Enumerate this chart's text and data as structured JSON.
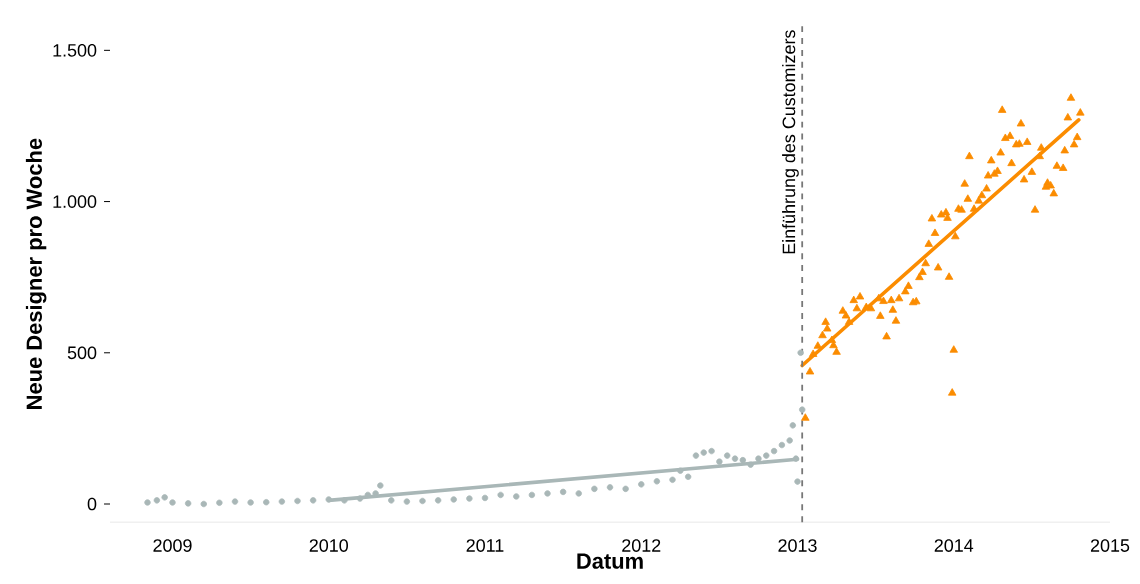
{
  "chart_data": {
    "type": "scatter",
    "xlabel": "Datum",
    "ylabel": "Neue Designer pro Woche",
    "xlim": [
      2008.6,
      2015
    ],
    "ylim": [
      -60,
      1580
    ],
    "xticks": [
      2009,
      2010,
      2011,
      2012,
      2013,
      2014,
      2015
    ],
    "yticks": [
      {
        "value": 0,
        "label": "0"
      },
      {
        "value": 500,
        "label": "500"
      },
      {
        "value": 1000,
        "label": "1.000"
      },
      {
        "value": 1500,
        "label": "1.500"
      }
    ],
    "ref_lines": [
      {
        "axis": "x",
        "value": 2013.03,
        "label": "Einführung des Customizers",
        "color": "#777777",
        "line_style": "dashed"
      }
    ],
    "series": [
      {
        "marker": "circle",
        "color": "#a9b7b7",
        "x": [
          2008.84,
          2008.9,
          2008.95,
          2009.0,
          2009.1,
          2009.2,
          2009.3,
          2009.4,
          2009.5,
          2009.6,
          2009.7,
          2009.8,
          2009.9,
          2010.0,
          2010.1,
          2010.2,
          2010.25,
          2010.3,
          2010.33,
          2010.4,
          2010.5,
          2010.6,
          2010.7,
          2010.8,
          2010.9,
          2011.0,
          2011.1,
          2011.2,
          2011.3,
          2011.4,
          2011.5,
          2011.6,
          2011.7,
          2011.8,
          2011.9,
          2012.0,
          2012.1,
          2012.2,
          2012.25,
          2012.3,
          2012.35,
          2012.4,
          2012.45,
          2012.5,
          2012.55,
          2012.6,
          2012.65,
          2012.7,
          2012.75,
          2012.8,
          2012.85,
          2012.9,
          2012.95,
          2012.97,
          2012.99,
          2013.0,
          2013.02,
          2013.03
        ],
        "values": [
          5,
          12,
          22,
          5,
          2,
          0,
          4,
          8,
          5,
          6,
          8,
          10,
          12,
          15,
          12,
          18,
          30,
          35,
          61,
          12,
          8,
          10,
          12,
          15,
          18,
          20,
          30,
          25,
          30,
          35,
          40,
          35,
          50,
          55,
          50,
          65,
          75,
          80,
          110,
          90,
          160,
          170,
          175,
          140,
          160,
          150,
          145,
          130,
          150,
          160,
          175,
          195,
          210,
          260,
          150,
          74,
          500,
          312
        ]
      },
      {
        "type": "line",
        "marker": "none",
        "color": "#a9b7b7",
        "x": [
          2010.0,
          2013.0
        ],
        "values": [
          12,
          148
        ]
      },
      {
        "marker": "triangle",
        "color": "#fb8c00",
        "x": [
          2013.05,
          2013.08,
          2013.1,
          2013.13,
          2013.16,
          2013.18,
          2013.19,
          2013.22,
          2013.23,
          2013.25,
          2013.29,
          2013.31,
          2013.33,
          2013.36,
          2013.38,
          2013.4,
          2013.44,
          2013.47,
          2013.52,
          2013.53,
          2013.55,
          2013.57,
          2013.6,
          2013.61,
          2013.63,
          2013.65,
          2013.69,
          2013.71,
          2013.74,
          2013.76,
          2013.78,
          2013.8,
          2013.82,
          2013.84,
          2013.86,
          2013.88,
          2013.9,
          2013.92,
          2013.95,
          2013.96,
          2013.97,
          2013.99,
          2014.0,
          2014.01,
          2014.03,
          2014.05,
          2014.07,
          2014.09,
          2014.1,
          2014.13,
          2014.16,
          2014.18,
          2014.21,
          2014.22,
          2014.24,
          2014.26,
          2014.28,
          2014.3,
          2014.31,
          2014.33,
          2014.36,
          2014.37,
          2014.4,
          2014.42,
          2014.43,
          2014.45,
          2014.47,
          2014.5,
          2014.52,
          2014.55,
          2014.56,
          2014.59,
          2014.6,
          2014.62,
          2014.64,
          2014.66,
          2014.7,
          2014.71,
          2014.73,
          2014.75,
          2014.77,
          2014.79,
          2014.81
        ],
        "values": [
          284,
          437,
          495,
          522,
          557,
          601,
          579,
          541,
          524,
          502,
          638,
          622,
          601,
          673,
          646,
          685,
          650,
          646,
          679,
          621,
          670,
          553,
          673,
          641,
          605,
          679,
          702,
          720,
          666,
          669,
          749,
          766,
          795,
          859,
          943,
          895,
          781,
          956,
          963,
          945,
          750,
          367,
          509,
          884,
          975,
          972,
          1058,
          1008,
          1149,
          975,
          1002,
          1020,
          1042,
          1085,
          1135,
          1091,
          1100,
          1161,
          1302,
          1209,
          1216,
          1126,
          1188,
          1190,
          1257,
          1072,
          1196,
          1097,
          972,
          1149,
          1177,
          1048,
          1061,
          1052,
          1026,
          1117,
          1110,
          1168,
          1277,
          1342,
          1188,
          1212,
          1293
        ]
      },
      {
        "type": "line",
        "marker": "none",
        "color": "#fb8c00",
        "x": [
          2013.03,
          2014.8
        ],
        "values": [
          458,
          1270
        ]
      }
    ]
  }
}
